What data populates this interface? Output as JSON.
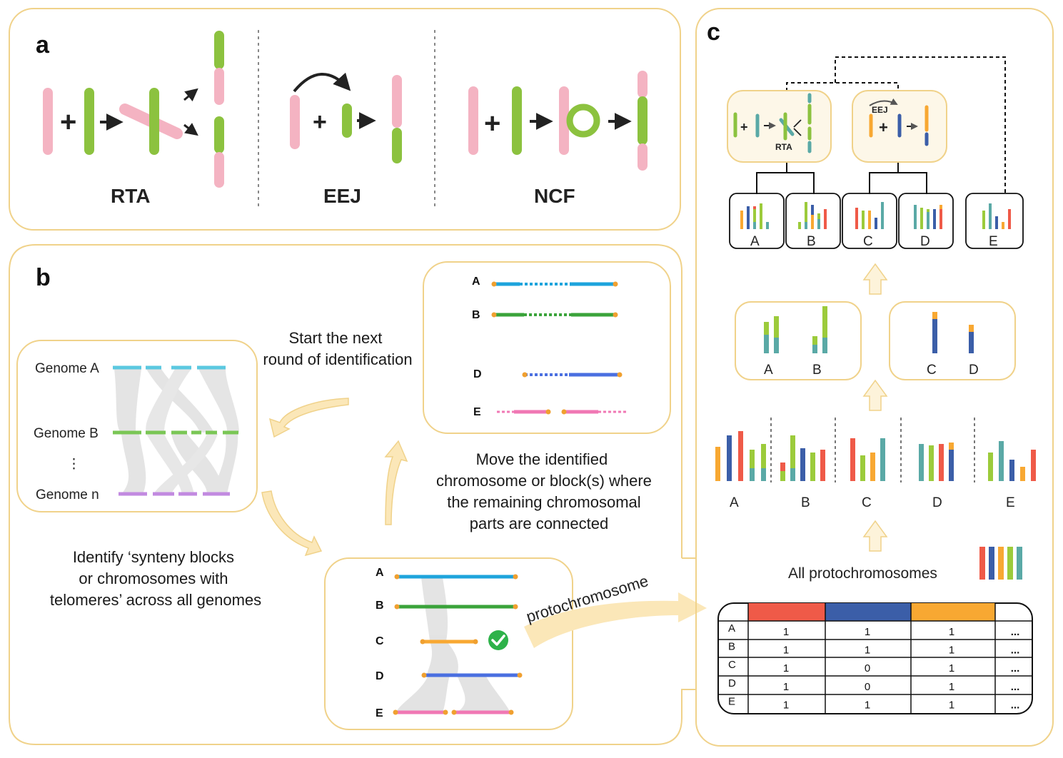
{
  "panel_a": {
    "letter": "a",
    "mechanisms": [
      "RTA",
      "EEJ",
      "NCF"
    ]
  },
  "panel_b": {
    "letter": "b",
    "genomes": [
      "Genome A",
      "Genome B",
      "⋮",
      "Genome n"
    ],
    "caption_identify": [
      "Identify ‘synteny blocks",
      "or chromosomes with",
      "telomeres’ across all genomes"
    ],
    "caption_next": [
      "Start the next",
      "round of identification"
    ],
    "caption_move": [
      "Move the identified",
      "chromosome or block(s) where",
      "the remaining chromosomal",
      "parts are connected"
    ],
    "arrow_label": "protochromosome",
    "rows_bottom": [
      "A",
      "B",
      "C",
      "D",
      "E"
    ],
    "rows_top": [
      "A",
      "B",
      "D",
      "E"
    ]
  },
  "panel_c": {
    "letter": "c",
    "rta_label": "RTA",
    "eej_label": "EEJ",
    "top_boxes": [
      "A",
      "B",
      "C",
      "D",
      "E"
    ],
    "mid_left": [
      "A",
      "B"
    ],
    "mid_right": [
      "C",
      "D"
    ],
    "bottom_labels": [
      "A",
      "B",
      "C",
      "D",
      "E"
    ],
    "all_label": "All protochromosomes",
    "table": {
      "header_colors": [
        "#ef5a48",
        "#3b5ea8",
        "#f8a832"
      ],
      "rows": [
        {
          "label": "A",
          "cells": [
            "1",
            "1",
            "1",
            "..."
          ]
        },
        {
          "label": "B",
          "cells": [
            "1",
            "1",
            "1",
            "..."
          ]
        },
        {
          "label": "C",
          "cells": [
            "1",
            "0",
            "1",
            "..."
          ]
        },
        {
          "label": "D",
          "cells": [
            "1",
            "0",
            "1",
            "..."
          ]
        },
        {
          "label": "E",
          "cells": [
            "1",
            "1",
            "1",
            "..."
          ]
        }
      ]
    }
  },
  "colors": {
    "pink": "#f4b3c2",
    "green": "#8cc23f",
    "panel_border": "#f0d28a",
    "red": "#ef5a48",
    "blue": "#3b5ea8",
    "orange": "#f8a832",
    "teal": "#5aa9a6",
    "lime": "#9ccb3b"
  }
}
